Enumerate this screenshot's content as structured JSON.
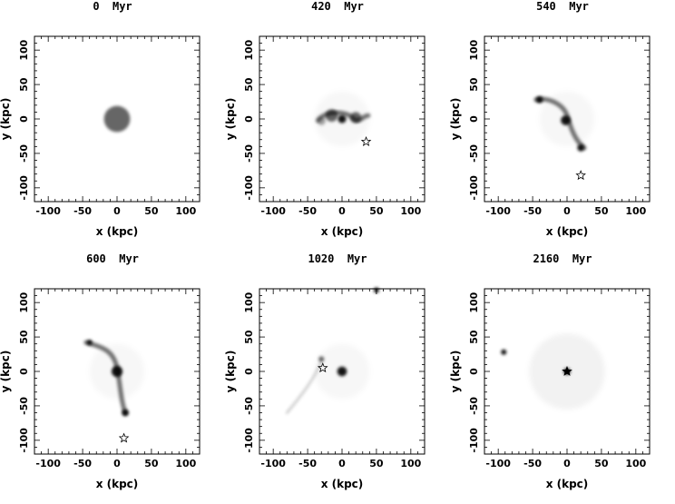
{
  "panels": [
    {
      "title": "0  Myr",
      "xlabel": "x (kpc)",
      "ylabel": "y (kpc)"
    },
    {
      "title": "420  Myr",
      "xlabel": "x (kpc)",
      "ylabel": "y (kpc)"
    },
    {
      "title": "540  Myr",
      "xlabel": "x (kpc)",
      "ylabel": "y (kpc)"
    },
    {
      "title": "600  Myr",
      "xlabel": "x (kpc)",
      "ylabel": "y (kpc)"
    },
    {
      "title": "1020  Myr",
      "xlabel": "x (kpc)",
      "ylabel": "y (kpc)"
    },
    {
      "title": "2160  Myr",
      "xlabel": "x (kpc)",
      "ylabel": "y (kpc)"
    }
  ],
  "axis": {
    "xlim": [
      -120,
      120
    ],
    "ylim": [
      -120,
      120
    ],
    "xticks": [
      "-100",
      "-50",
      "0",
      "50",
      "100"
    ],
    "yticks": [
      "-100",
      "-50",
      "0",
      "50",
      "100"
    ]
  },
  "chart_data": [
    {
      "type": "other",
      "panel": "0 Myr",
      "blobs": [
        {
          "x": 0,
          "y": 0,
          "r": 19,
          "density": "medium"
        }
      ],
      "companion_star": null
    },
    {
      "type": "other",
      "panel": "420 Myr",
      "blobs": [
        {
          "x": 0,
          "y": 0,
          "r": 6,
          "density": "high"
        },
        {
          "x": -15,
          "y": 5,
          "r": 9,
          "density": "medium"
        },
        {
          "x": 20,
          "y": 2,
          "r": 8,
          "density": "medium"
        },
        {
          "x": -30,
          "y": -3,
          "r": 6,
          "density": "low"
        }
      ],
      "companion_star": {
        "x": 35,
        "y": -33
      }
    },
    {
      "type": "other",
      "panel": "540 Myr",
      "blobs": [
        {
          "x": -2,
          "y": -2,
          "r": 7,
          "density": "high"
        },
        {
          "x": -40,
          "y": 28,
          "r": 5,
          "density": "high"
        },
        {
          "x": 20,
          "y": -42,
          "r": 5,
          "density": "high"
        }
      ],
      "companion_star": {
        "x": 20,
        "y": -82
      }
    },
    {
      "type": "other",
      "panel": "600 Myr",
      "blobs": [
        {
          "x": 0,
          "y": 0,
          "r": 8,
          "density": "high"
        },
        {
          "x": -40,
          "y": 42,
          "r": 4,
          "density": "high"
        },
        {
          "x": 12,
          "y": -60,
          "r": 5,
          "density": "high"
        }
      ],
      "companion_star": {
        "x": 10,
        "y": -97
      }
    },
    {
      "type": "other",
      "panel": "1020 Myr",
      "blobs": [
        {
          "x": 0,
          "y": 0,
          "r": 7,
          "density": "high"
        },
        {
          "x": 50,
          "y": 118,
          "r": 4,
          "density": "high"
        },
        {
          "x": -30,
          "y": 18,
          "r": 4,
          "density": "medium"
        }
      ],
      "companion_star": {
        "x": -28,
        "y": 5
      }
    },
    {
      "type": "other",
      "panel": "2160 Myr",
      "blobs": [
        {
          "x": 0,
          "y": 0,
          "r": 5,
          "density": "high"
        },
        {
          "x": -92,
          "y": 28,
          "r": 4,
          "density": "high"
        }
      ],
      "companion_star": {
        "x": 0,
        "y": 0
      }
    }
  ]
}
